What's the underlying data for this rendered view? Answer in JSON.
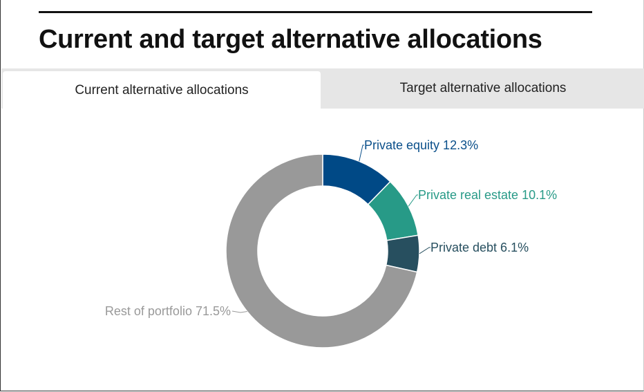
{
  "header": {
    "title": "Current and target alternative allocations"
  },
  "tabs": [
    {
      "label": "Current alternative allocations",
      "active": true
    },
    {
      "label": "Target alternative allocations",
      "active": false
    }
  ],
  "colors": {
    "private_equity": "#004986",
    "private_real_estate": "#279a87",
    "private_debt": "#274f5f",
    "rest_of_portfolio": "#999999"
  },
  "chart_data": {
    "type": "pie",
    "donut": true,
    "legend": "none",
    "slices": [
      {
        "name": "Private equity",
        "value": 12.3,
        "label": "Private equity 12.3%",
        "color": "#004986",
        "label_color": "#0a4f8a"
      },
      {
        "name": "Private real estate",
        "value": 10.1,
        "label": "Private real estate 10.1%",
        "color": "#279a87",
        "label_color": "#279a87"
      },
      {
        "name": "Private debt",
        "value": 6.1,
        "label": "Private debt 6.1%",
        "color": "#274f5f",
        "label_color": "#274f5f"
      },
      {
        "name": "Rest of portfolio",
        "value": 71.5,
        "label": "Rest of portfolio 71.5%",
        "color": "#999999",
        "label_color": "#999999"
      }
    ]
  }
}
